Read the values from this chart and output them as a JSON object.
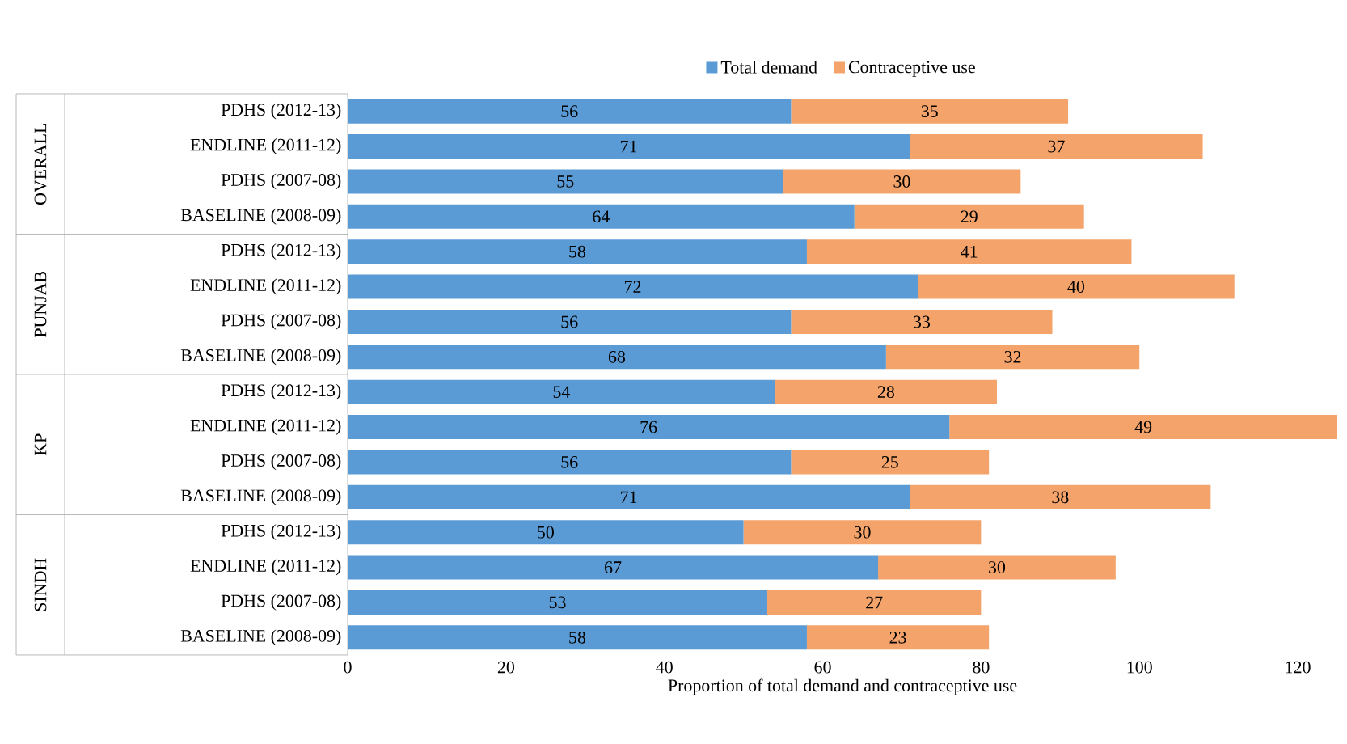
{
  "chart_data": {
    "type": "bar",
    "orientation": "horizontal",
    "stacked": true,
    "xlabel": "Proportion of total demand and contraceptive use",
    "categories": [
      "PDHS (2012-13)",
      "ENDLINE (2011-12)",
      "PDHS (2007-08)",
      "BASELINE (2008-09)",
      "PDHS (2012-13)",
      "ENDLINE (2011-12)",
      "PDHS (2007-08)",
      "BASELINE (2008-09)",
      "PDHS (2012-13)",
      "ENDLINE (2011-12)",
      "PDHS (2007-08)",
      "BASELINE (2008-09)",
      "PDHS (2012-13)",
      "ENDLINE (2011-12)",
      "PDHS (2007-08)",
      "BASELINE (2008-09)"
    ],
    "series": [
      {
        "name": "Total demand",
        "color": "#5b9bd5",
        "values": [
          56,
          71,
          55,
          64,
          58,
          72,
          56,
          68,
          54,
          76,
          56,
          71,
          50,
          67,
          53,
          58
        ]
      },
      {
        "name": "Contraceptive use",
        "color": "#f4a36a",
        "values": [
          35,
          37,
          30,
          29,
          41,
          40,
          33,
          32,
          28,
          49,
          25,
          38,
          30,
          30,
          27,
          23
        ]
      }
    ],
    "annotations": [
      "OVERALL",
      "PUNJAB",
      "KP",
      "SINDH"
    ],
    "xlim": [
      0,
      125
    ],
    "xticks": [
      0,
      20,
      40,
      60,
      80,
      100,
      120
    ],
    "data_labels": true,
    "legend": "top",
    "grid": false
  }
}
